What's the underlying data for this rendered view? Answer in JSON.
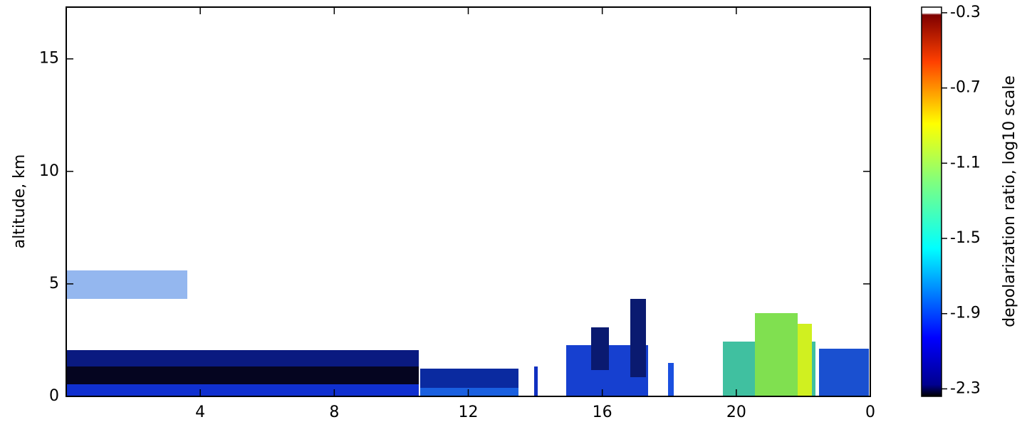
{
  "chart_data": {
    "type": "heatmap",
    "y_label": "altitude, km",
    "xlim": [
      0,
      24
    ],
    "xticks": [
      4,
      8,
      12,
      16,
      20,
      {
        "value": 24,
        "label": "0"
      }
    ],
    "ylim": [
      0,
      17.3
    ],
    "yticks": [
      0,
      5,
      10,
      15
    ],
    "colorbar": {
      "label": "depolarization ratio, log10 scale",
      "colormap": "jet",
      "clim": [
        -2.34,
        -0.27
      ],
      "ticks": [
        -0.3,
        -0.7,
        -1.1,
        -1.5,
        -1.9,
        -2.3
      ]
    }
  }
}
